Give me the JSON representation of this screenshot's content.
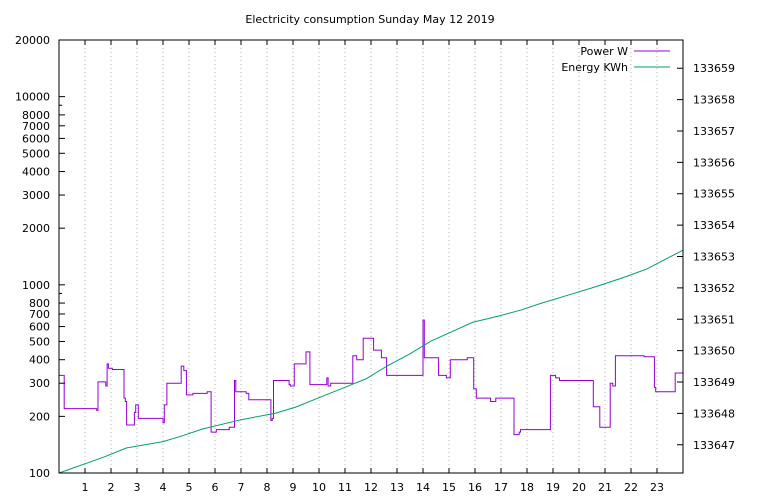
{
  "chart_data": {
    "type": "line",
    "title": "Electricity consumption Sunday May 12 2019",
    "xlabel": "",
    "ylabel": "",
    "y2label": "",
    "grid": true,
    "legend_position": "top-right",
    "x_range": [
      0,
      24
    ],
    "x_ticks": [
      1,
      2,
      3,
      4,
      5,
      6,
      7,
      8,
      9,
      10,
      11,
      12,
      13,
      14,
      15,
      16,
      17,
      18,
      19,
      20,
      21,
      22,
      23
    ],
    "y_scale": "log",
    "y_range": [
      100,
      20000
    ],
    "y_ticks": [
      100,
      200,
      300,
      400,
      500,
      600,
      700,
      800,
      1000,
      2000,
      3000,
      4000,
      5000,
      6000,
      7000,
      8000,
      10000,
      20000
    ],
    "y2_range": [
      133646.1,
      133659.9
    ],
    "y2_ticks": [
      133647,
      133648,
      133649,
      133650,
      133651,
      133652,
      133653,
      133654,
      133655,
      133656,
      133657,
      133658,
      133659
    ],
    "series": [
      {
        "name": "Power W",
        "axis": "y",
        "color": "#9400d3",
        "step": true,
        "x": [
          0,
          0.2,
          1.45,
          1.5,
          1.8,
          1.85,
          1.9,
          2.05,
          2.5,
          2.55,
          2.6,
          2.9,
          2.95,
          3.05,
          4.0,
          4.05,
          4.15,
          4.7,
          4.8,
          4.9,
          5.15,
          5.7,
          5.85,
          6.05,
          6.55,
          6.75,
          6.8,
          7.2,
          7.3,
          8.15,
          8.2,
          8.25,
          8.85,
          8.9,
          9.05,
          9.5,
          9.65,
          10.3,
          10.35,
          10.45,
          11.3,
          11.45,
          11.7,
          12.1,
          12.4,
          12.6,
          14.0,
          14.05,
          14.6,
          14.9,
          15.05,
          15.7,
          15.95,
          16.05,
          16.6,
          16.8,
          17.5,
          17.55,
          17.7,
          17.75,
          18.9,
          19.1,
          19.25,
          20.55,
          20.8,
          20.9,
          21.2,
          21.3,
          21.4,
          22.5,
          22.9,
          22.95,
          23.7,
          24
        ],
        "y": [
          330,
          220,
          215,
          305,
          290,
          380,
          360,
          355,
          250,
          240,
          180,
          210,
          230,
          195,
          185,
          230,
          300,
          370,
          350,
          260,
          265,
          270,
          165,
          170,
          175,
          310,
          270,
          265,
          245,
          190,
          195,
          310,
          295,
          290,
          380,
          440,
          295,
          320,
          290,
          300,
          420,
          400,
          520,
          450,
          410,
          330,
          650,
          410,
          330,
          320,
          400,
          410,
          280,
          250,
          240,
          250,
          160,
          160,
          165,
          170,
          330,
          320,
          310,
          225,
          175,
          175,
          300,
          290,
          420,
          415,
          285,
          270,
          340,
          340
        ]
      },
      {
        "name": "Energy KWh",
        "axis": "y2",
        "color": "#009e73",
        "step": false,
        "x": [
          0,
          1.7,
          2.6,
          4.0,
          4.8,
          5.5,
          7.0,
          8.3,
          9.1,
          10.0,
          10.9,
          11.8,
          12.6,
          13.5,
          14.3,
          15.1,
          15.9,
          16.9,
          17.8,
          18.5,
          19.7,
          20.5,
          21.6,
          22.6,
          23.3,
          24
        ],
        "y": [
          133646.1,
          133646.6,
          133646.9,
          133647.1,
          133647.3,
          133647.5,
          133647.8,
          133648.0,
          133648.2,
          133648.5,
          133648.8,
          133649.1,
          133649.5,
          133649.9,
          133650.3,
          133650.6,
          133650.9,
          133651.1,
          133651.3,
          133651.5,
          133651.8,
          133652.0,
          133652.3,
          133652.6,
          133652.9,
          133653.2
        ]
      }
    ]
  }
}
